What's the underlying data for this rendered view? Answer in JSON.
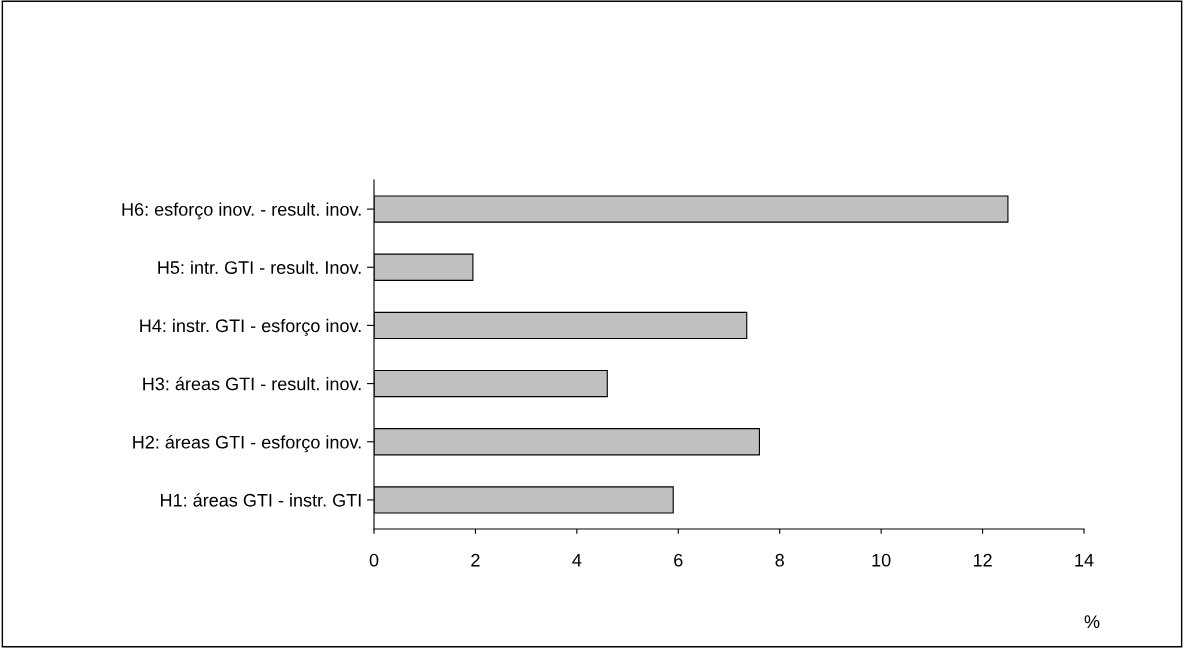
{
  "chart_data": {
    "type": "bar",
    "orientation": "horizontal",
    "xlabel": "%",
    "categories": [
      "H6: esforço inov. - result. inov.",
      "H5: intr. GTI - result. Inov.",
      "H4: instr. GTI - esforço inov.",
      "H3: áreas GTI - result. inov.",
      "H2: áreas GTI - esforço inov.",
      "H1: áreas GTI - instr. GTI"
    ],
    "values": [
      12.5,
      1.95,
      7.35,
      4.6,
      7.6,
      5.9
    ],
    "color": "#c0c0c0",
    "xlim": [
      0,
      14
    ],
    "xticks": [
      0,
      2,
      4,
      6,
      8,
      10,
      12,
      14
    ],
    "grid": false,
    "legend": false
  }
}
